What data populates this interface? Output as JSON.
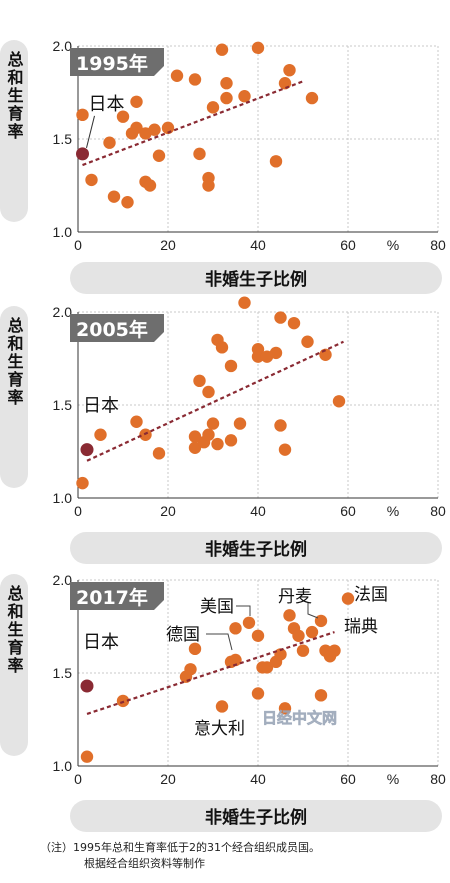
{
  "colors": {
    "dot": "#e06f2a",
    "japan_dot": "#8a2a33",
    "trend": "#8a2a33",
    "pill": "#e4e4e4",
    "year_box": "#6e6e6e",
    "grid": "#c8c8c8"
  },
  "chart_data": [
    {
      "type": "scatter",
      "title": "1995年",
      "ylabel": "总和生育率",
      "xlabel": "非婚生子比例",
      "x_unit": "%",
      "xlim": [
        0,
        80
      ],
      "ylim": [
        1.0,
        2.0
      ],
      "x_ticks": [
        "0",
        "20",
        "40",
        "60",
        "80"
      ],
      "y_ticks": [
        "1.0",
        "1.5",
        "2.0"
      ],
      "grid": true,
      "trend": {
        "x": [
          1,
          50
        ],
        "y": [
          1.36,
          1.81
        ]
      },
      "highlight": {
        "label": "日本",
        "x": 1,
        "y": 1.42
      },
      "points": [
        {
          "x": 1,
          "y": 1.63
        },
        {
          "x": 3,
          "y": 1.28
        },
        {
          "x": 7,
          "y": 1.48
        },
        {
          "x": 8,
          "y": 1.19
        },
        {
          "x": 10,
          "y": 1.62
        },
        {
          "x": 11,
          "y": 1.16
        },
        {
          "x": 12,
          "y": 1.53
        },
        {
          "x": 13,
          "y": 1.56
        },
        {
          "x": 13,
          "y": 1.7
        },
        {
          "x": 15,
          "y": 1.53
        },
        {
          "x": 15,
          "y": 1.27
        },
        {
          "x": 16,
          "y": 1.25
        },
        {
          "x": 17,
          "y": 1.55
        },
        {
          "x": 18,
          "y": 1.41
        },
        {
          "x": 20,
          "y": 1.56
        },
        {
          "x": 22,
          "y": 1.84
        },
        {
          "x": 26,
          "y": 1.82
        },
        {
          "x": 27,
          "y": 1.42
        },
        {
          "x": 29,
          "y": 1.29
        },
        {
          "x": 29,
          "y": 1.25
        },
        {
          "x": 30,
          "y": 1.67
        },
        {
          "x": 32,
          "y": 1.98
        },
        {
          "x": 33,
          "y": 1.8
        },
        {
          "x": 33,
          "y": 1.72
        },
        {
          "x": 37,
          "y": 1.73
        },
        {
          "x": 40,
          "y": 1.99
        },
        {
          "x": 44,
          "y": 1.38
        },
        {
          "x": 46,
          "y": 1.8
        },
        {
          "x": 47,
          "y": 1.87
        },
        {
          "x": 52,
          "y": 1.72
        }
      ]
    },
    {
      "type": "scatter",
      "title": "2005年",
      "ylabel": "总和生育率",
      "xlabel": "非婚生子比例",
      "x_unit": "%",
      "xlim": [
        0,
        80
      ],
      "ylim": [
        1.0,
        2.0
      ],
      "x_ticks": [
        "0",
        "20",
        "40",
        "60",
        "80"
      ],
      "y_ticks": [
        "1.0",
        "1.5",
        "2.0"
      ],
      "grid": true,
      "trend": {
        "x": [
          2,
          59
        ],
        "y": [
          1.2,
          1.84
        ]
      },
      "highlight": {
        "label": "日本",
        "x": 2,
        "y": 1.26
      },
      "points": [
        {
          "x": 1,
          "y": 1.08
        },
        {
          "x": 5,
          "y": 1.34
        },
        {
          "x": 13,
          "y": 1.41
        },
        {
          "x": 15,
          "y": 1.34
        },
        {
          "x": 18,
          "y": 1.24
        },
        {
          "x": 26,
          "y": 1.27
        },
        {
          "x": 26,
          "y": 1.33
        },
        {
          "x": 27,
          "y": 1.63
        },
        {
          "x": 28,
          "y": 1.3
        },
        {
          "x": 29,
          "y": 1.57
        },
        {
          "x": 29,
          "y": 1.34
        },
        {
          "x": 30,
          "y": 1.4
        },
        {
          "x": 31,
          "y": 1.29
        },
        {
          "x": 31,
          "y": 1.85
        },
        {
          "x": 32,
          "y": 1.81
        },
        {
          "x": 34,
          "y": 1.71
        },
        {
          "x": 34,
          "y": 1.31
        },
        {
          "x": 36,
          "y": 1.4
        },
        {
          "x": 37,
          "y": 2.05
        },
        {
          "x": 40,
          "y": 1.76
        },
        {
          "x": 40,
          "y": 1.8
        },
        {
          "x": 42,
          "y": 1.76
        },
        {
          "x": 44,
          "y": 1.78
        },
        {
          "x": 45,
          "y": 1.39
        },
        {
          "x": 46,
          "y": 1.26
        },
        {
          "x": 45,
          "y": 1.97
        },
        {
          "x": 48,
          "y": 1.94
        },
        {
          "x": 51,
          "y": 1.84
        },
        {
          "x": 55,
          "y": 1.77
        },
        {
          "x": 58,
          "y": 1.52
        }
      ]
    },
    {
      "type": "scatter",
      "title": "2017年",
      "ylabel": "总和生育率",
      "xlabel": "非婚生子比例",
      "x_unit": "%",
      "xlim": [
        0,
        80
      ],
      "ylim": [
        1.0,
        2.0
      ],
      "x_ticks": [
        "0",
        "20",
        "40",
        "60",
        "80"
      ],
      "y_ticks": [
        "1.0",
        "1.5",
        "2.0"
      ],
      "grid": true,
      "trend": {
        "x": [
          2,
          57
        ],
        "y": [
          1.28,
          1.72
        ]
      },
      "highlight": {
        "label": "日本",
        "x": 2,
        "y": 1.43
      },
      "points": [
        {
          "x": 2,
          "y": 1.05
        },
        {
          "x": 10,
          "y": 1.35
        },
        {
          "x": 24,
          "y": 1.48
        },
        {
          "x": 25,
          "y": 1.52
        },
        {
          "x": 26,
          "y": 1.63
        },
        {
          "x": 32,
          "y": 1.32
        },
        {
          "x": 34,
          "y": 1.56
        },
        {
          "x": 35,
          "y": 1.57
        },
        {
          "x": 35,
          "y": 1.74
        },
        {
          "x": 38,
          "y": 1.77
        },
        {
          "x": 40,
          "y": 1.39
        },
        {
          "x": 40,
          "y": 1.7
        },
        {
          "x": 41,
          "y": 1.53
        },
        {
          "x": 42,
          "y": 1.53
        },
        {
          "x": 44,
          "y": 1.56
        },
        {
          "x": 45,
          "y": 1.6
        },
        {
          "x": 46,
          "y": 1.31
        },
        {
          "x": 47,
          "y": 1.81
        },
        {
          "x": 48,
          "y": 1.74
        },
        {
          "x": 49,
          "y": 1.7
        },
        {
          "x": 50,
          "y": 1.62
        },
        {
          "x": 52,
          "y": 1.72
        },
        {
          "x": 54,
          "y": 1.78
        },
        {
          "x": 55,
          "y": 1.62
        },
        {
          "x": 56,
          "y": 1.59
        },
        {
          "x": 57,
          "y": 1.62
        },
        {
          "x": 54,
          "y": 1.38
        },
        {
          "x": 60,
          "y": 1.9
        }
      ],
      "annotations": [
        {
          "label": "美国",
          "x": 39,
          "y": 1.77,
          "anchor": "leader"
        },
        {
          "label": "德国",
          "x": 35,
          "y": 1.57,
          "anchor": "leader"
        },
        {
          "label": "意大利",
          "x": 32,
          "y": 1.32,
          "anchor": "below"
        },
        {
          "label": "丹麦",
          "x": 54,
          "y": 1.78,
          "anchor": "leader"
        },
        {
          "label": "法国",
          "x": 60,
          "y": 1.9,
          "anchor": "right"
        },
        {
          "label": "瑞典",
          "x": 55,
          "y": 1.74,
          "anchor": "right"
        }
      ]
    }
  ],
  "watermark": "日经中文网",
  "note": {
    "line1": "（注）1995年总和生育率低于2的31个经合组织成员国。",
    "line2": "根据经合组织资料等制作"
  }
}
